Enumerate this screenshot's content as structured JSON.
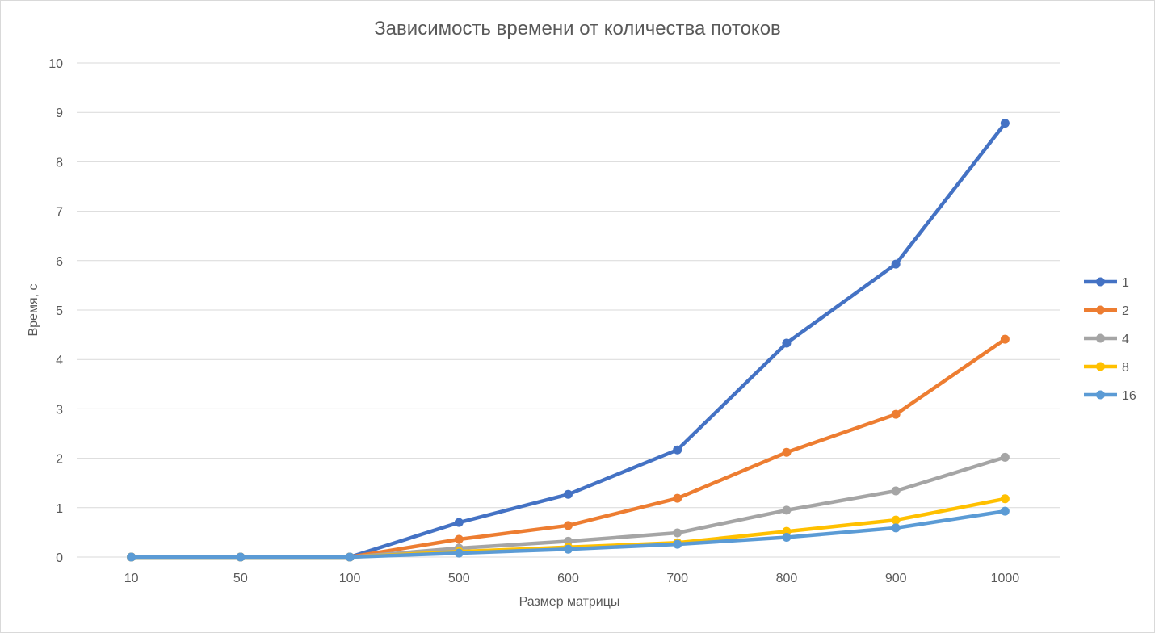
{
  "chart_data": {
    "type": "line",
    "title": "Зависимость времени от количества потоков",
    "xlabel": "Размер матрицы",
    "ylabel": "Время, с",
    "categories": [
      "10",
      "50",
      "100",
      "500",
      "600",
      "700",
      "800",
      "900",
      "1000"
    ],
    "ylim": [
      0,
      10
    ],
    "yticks": [
      "0",
      "1",
      "2",
      "3",
      "4",
      "5",
      "6",
      "7",
      "8",
      "9",
      "10"
    ],
    "grid": true,
    "legend_position": "right",
    "series": [
      {
        "name": "1",
        "color": "#4472C4",
        "values": [
          0,
          0,
          0,
          0.7,
          1.27,
          2.17,
          4.33,
          5.93,
          8.78
        ]
      },
      {
        "name": "2",
        "color": "#ED7D31",
        "values": [
          0,
          0,
          0,
          0.36,
          0.64,
          1.19,
          2.12,
          2.89,
          4.41
        ]
      },
      {
        "name": "4",
        "color": "#A5A5A5",
        "values": [
          0,
          0,
          0,
          0.18,
          0.32,
          0.49,
          0.95,
          1.34,
          2.02
        ]
      },
      {
        "name": "8",
        "color": "#FFC000",
        "values": [
          0,
          0,
          0,
          0.11,
          0.2,
          0.29,
          0.52,
          0.75,
          1.18
        ]
      },
      {
        "name": "16",
        "color": "#5B9BD5",
        "values": [
          0,
          0,
          0,
          0.08,
          0.16,
          0.26,
          0.4,
          0.59,
          0.93
        ]
      }
    ]
  }
}
